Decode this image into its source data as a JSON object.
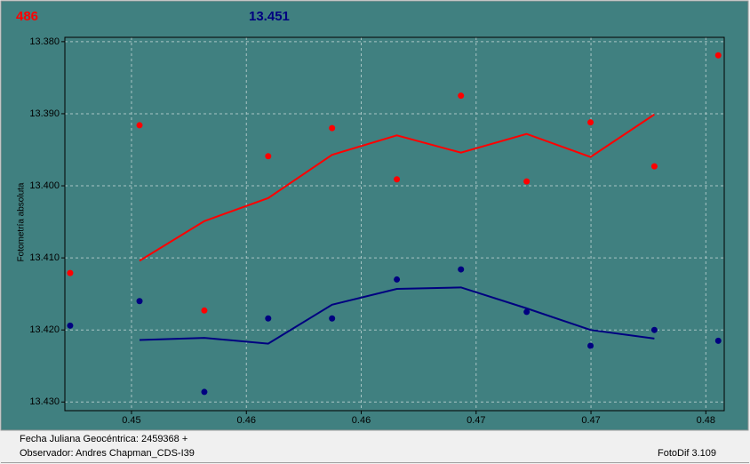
{
  "header": {
    "left": "486",
    "right": "13.451"
  },
  "footer": {
    "date": "Fecha Juliana Geocéntrica: 2459368 +",
    "observer": "Observador: Andres Chapman_CDS-I39",
    "app": "FotoDif 3.109"
  },
  "chart_data": {
    "type": "scatter",
    "y_label": "Fotometría absoluta",
    "xlim": [
      0.4471,
      0.4758
    ],
    "xticks": [
      {
        "value": 0.45,
        "label": "0.45"
      },
      {
        "value": 0.455,
        "label": "0.46"
      },
      {
        "value": 0.46,
        "label": "0.46"
      },
      {
        "value": 0.465,
        "label": "0.47"
      },
      {
        "value": 0.47,
        "label": "0.47"
      },
      {
        "value": 0.475,
        "label": "0.48"
      }
    ],
    "ylim": [
      13.4312,
      13.3794
    ],
    "yticks": [
      {
        "value": 13.38,
        "label": "13.380"
      },
      {
        "value": 13.39,
        "label": "13.390"
      },
      {
        "value": 13.4,
        "label": "13.400"
      },
      {
        "value": 13.41,
        "label": "13.410"
      },
      {
        "value": 13.42,
        "label": "13.420"
      },
      {
        "value": 13.43,
        "label": "13.430"
      }
    ],
    "grid": true,
    "points": [
      {
        "color": "#ff0000",
        "x": [
          0.44733,
          0.45035,
          0.45317,
          0.45595,
          0.45873,
          0.46155,
          0.46434,
          0.4672,
          0.46998,
          0.47276,
          0.47554
        ],
        "values": [
          13.4121,
          13.3916,
          13.4173,
          13.3959,
          13.392,
          13.3991,
          13.3875,
          13.3994,
          13.3912,
          13.3973,
          13.3819
        ]
      },
      {
        "color": "#000080",
        "x": [
          0.44733,
          0.45035,
          0.45317,
          0.45595,
          0.45873,
          0.46155,
          0.46434,
          0.4672,
          0.46998,
          0.47276,
          0.47554
        ],
        "values": [
          13.4194,
          13.416,
          13.4286,
          13.4184,
          13.4184,
          13.413,
          13.4116,
          13.4175,
          13.4222,
          13.42,
          13.4215
        ]
      }
    ],
    "lines": [
      {
        "color": "#ff0000",
        "x": [
          0.45035,
          0.45317,
          0.45595,
          0.45873,
          0.46155,
          0.46434,
          0.4672,
          0.46998,
          0.47276
        ],
        "values": [
          13.4104,
          13.4049,
          13.4017,
          13.3957,
          13.393,
          13.3954,
          13.3928,
          13.396,
          13.3901
        ]
      },
      {
        "color": "#000080",
        "x": [
          0.45035,
          0.45317,
          0.45595,
          0.45873,
          0.46155,
          0.46434,
          0.4672,
          0.46998,
          0.47276
        ],
        "values": [
          13.4214,
          13.4211,
          13.4219,
          13.4165,
          13.4143,
          13.4141,
          13.417,
          13.42,
          13.4212
        ]
      }
    ]
  }
}
